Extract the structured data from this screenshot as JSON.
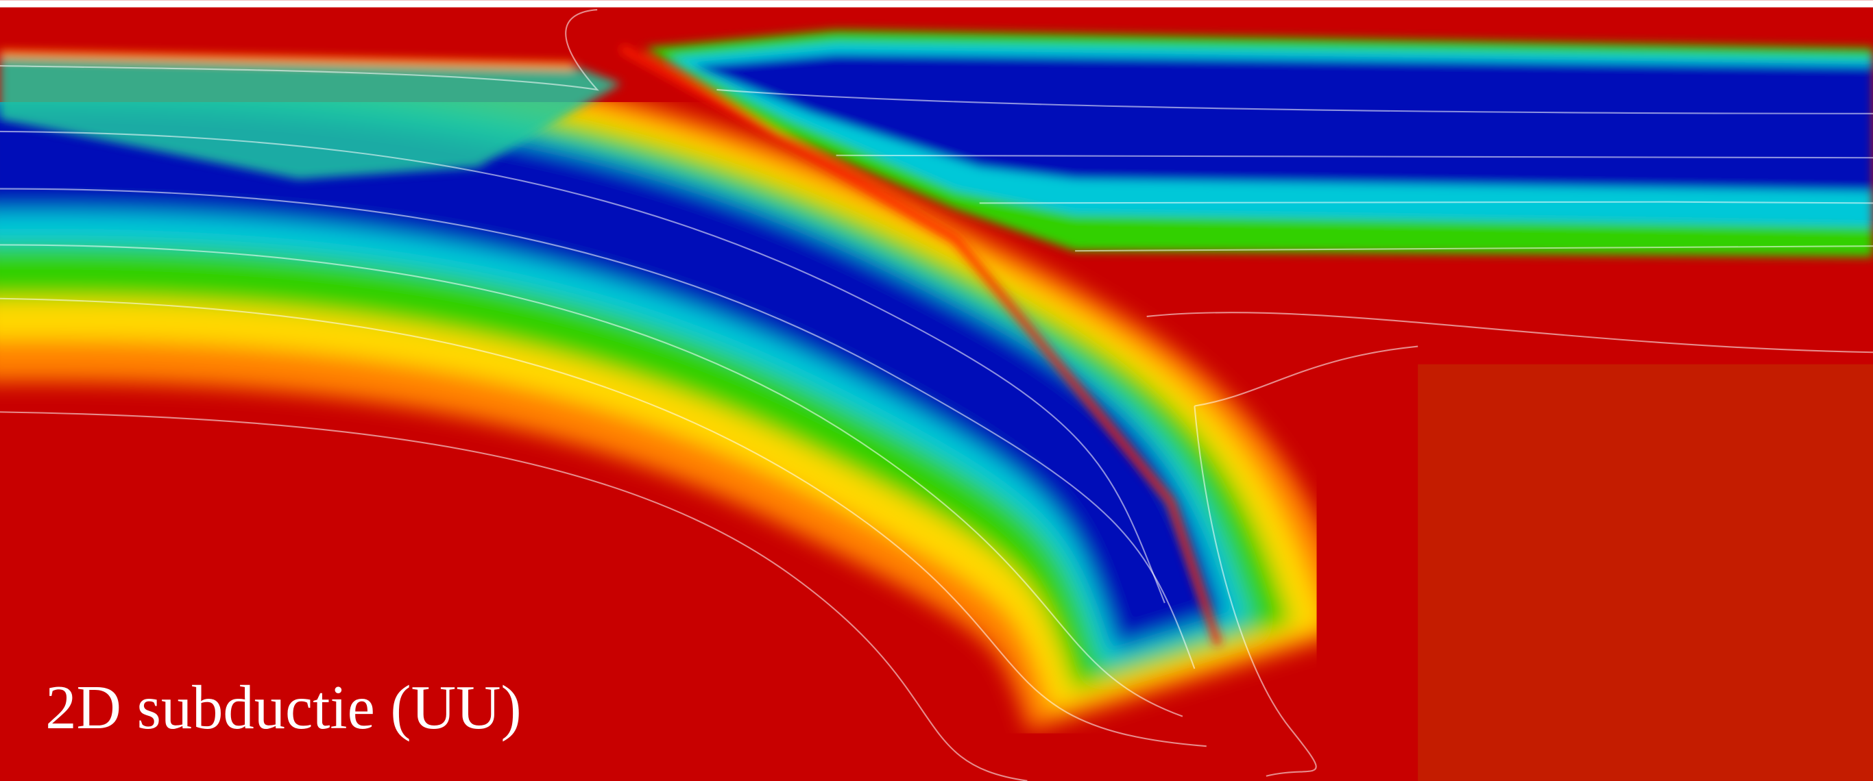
{
  "caption": "2D subductie (UU)"
}
